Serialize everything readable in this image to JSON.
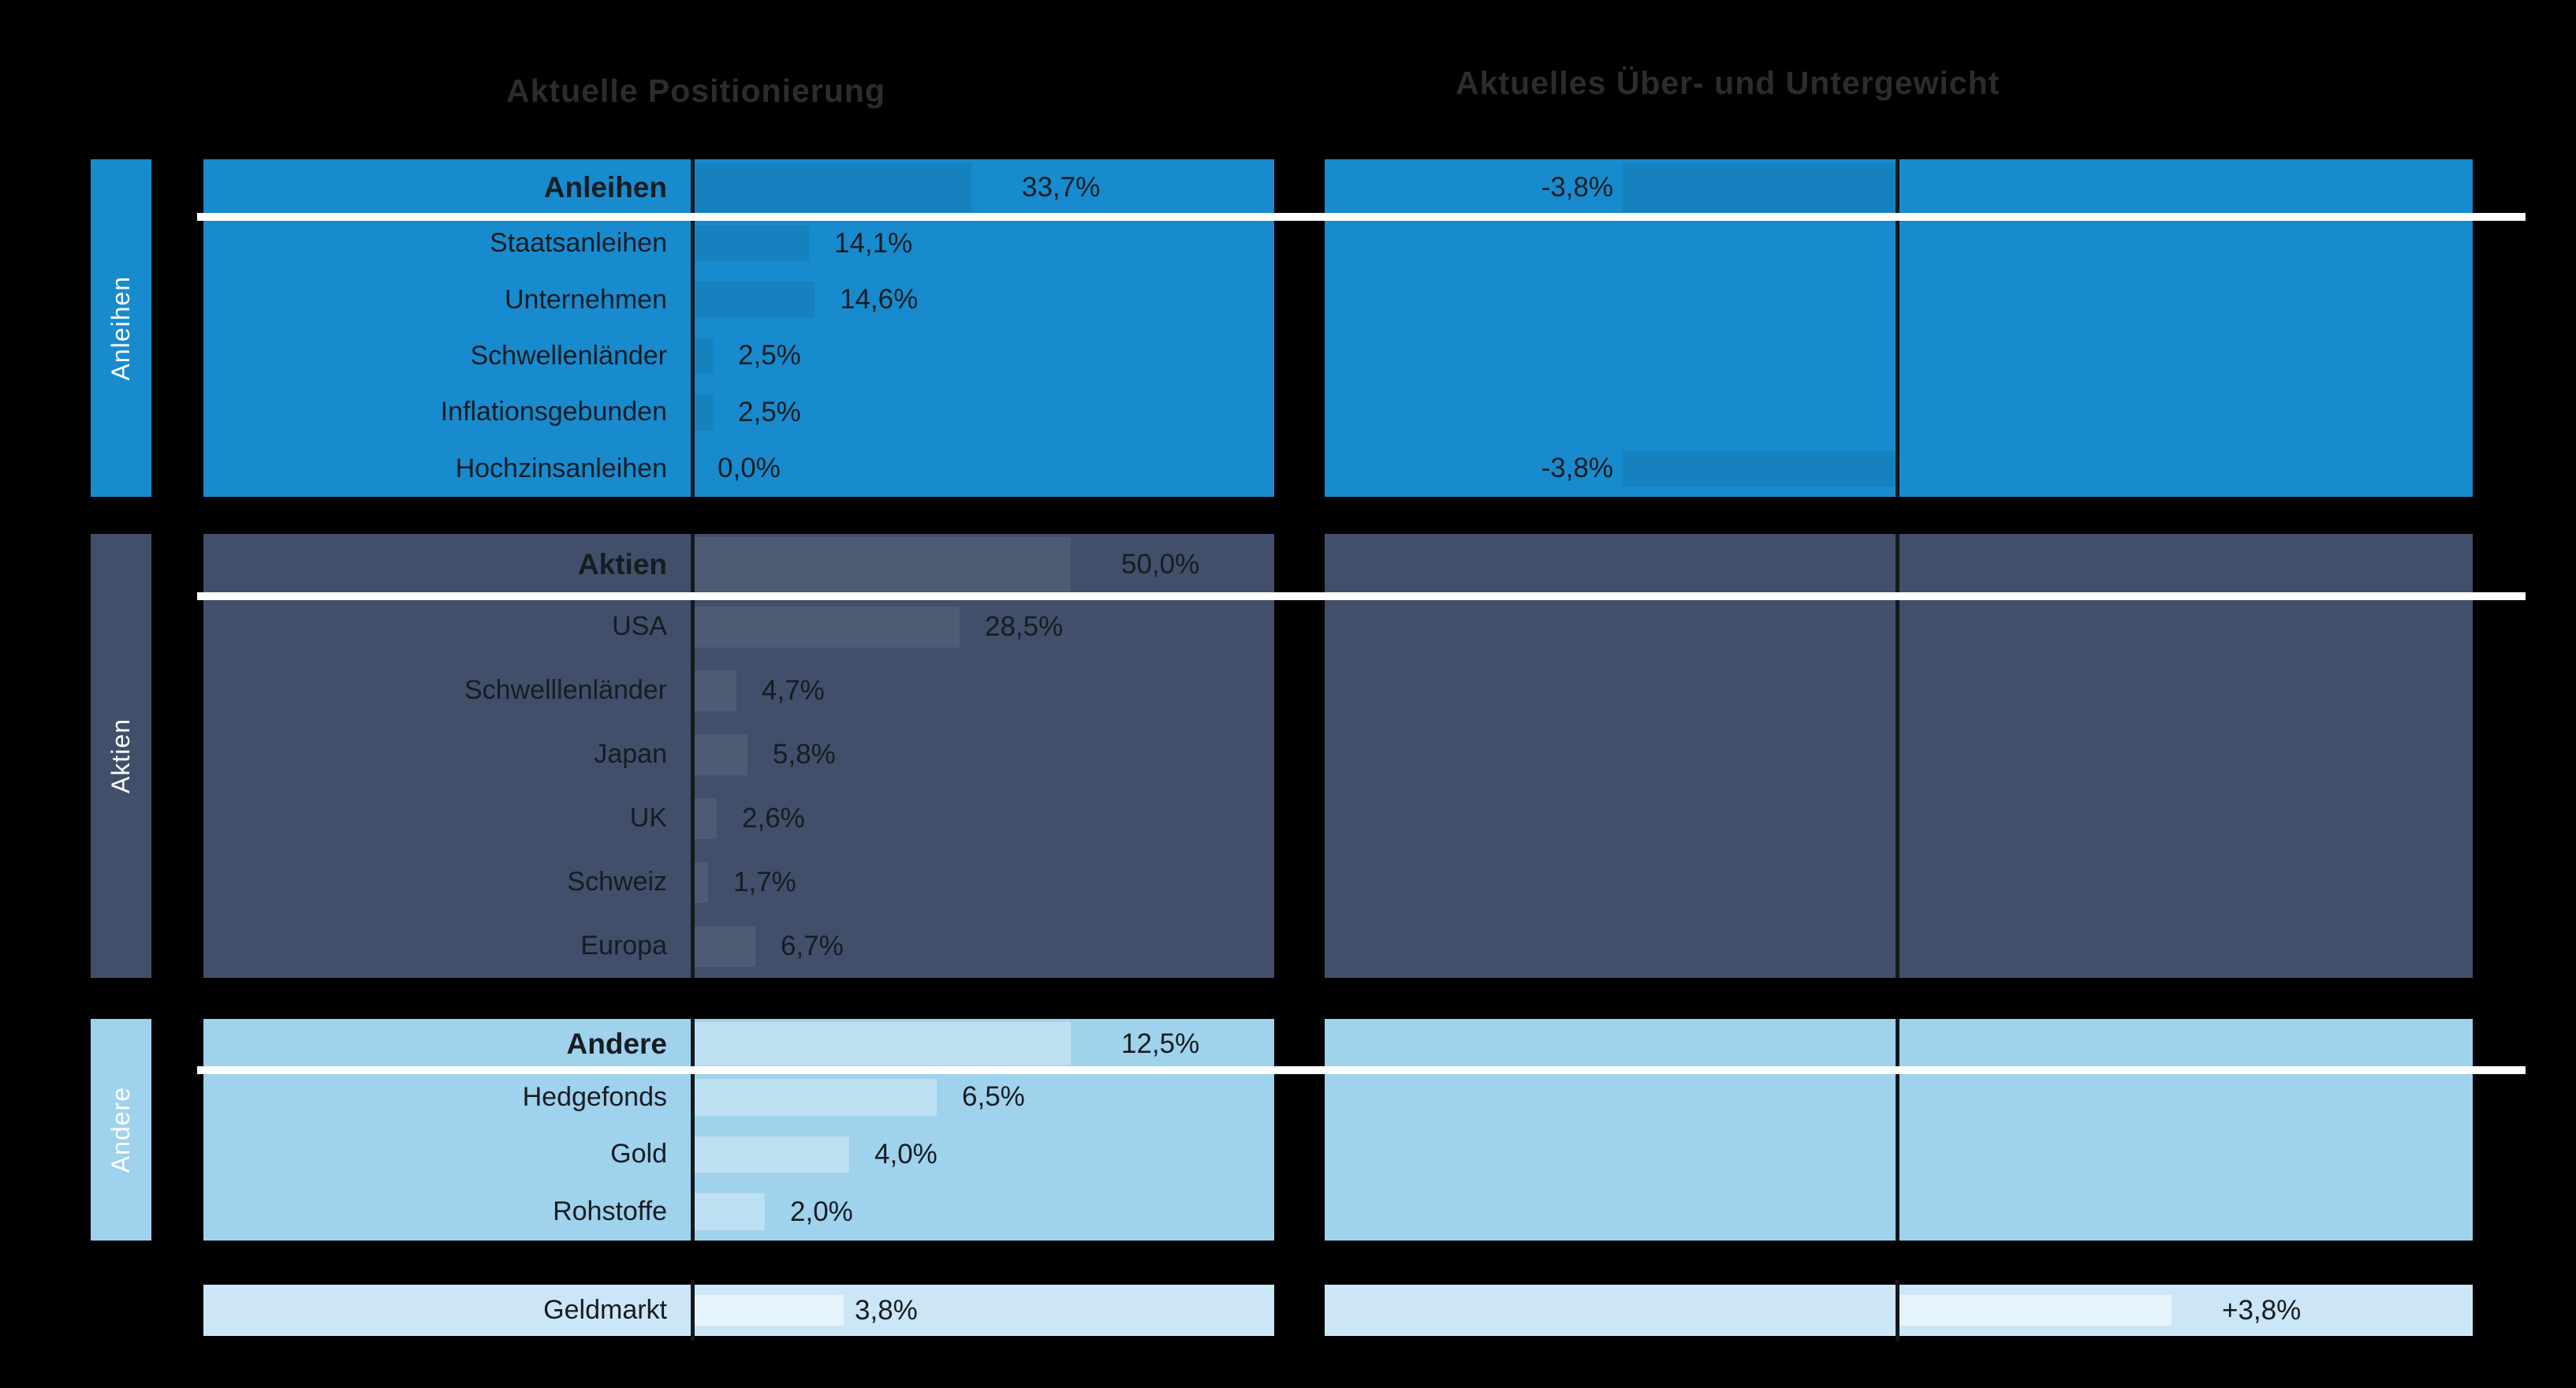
{
  "headings": {
    "left": "Aktuelle Positionierung",
    "right": "Aktuelles Über- und Untergewicht"
  },
  "palette": {
    "background": "#000000",
    "heading_text": "#2b2c2e",
    "label_text": "#171c22",
    "separator_line": "#ffffff",
    "axis_line": "#15181d",
    "sidebar_text": "#ffffff",
    "group_colors": {
      "anleihen": "#178bce",
      "aktien": "#414f6a",
      "andere": "#9fd2ec",
      "geldmarkt": "#cbe6f6"
    }
  },
  "chart_data": {
    "type": "bar",
    "orientation": "horizontal",
    "unit": "%",
    "panels": [
      "Aktuelle Positionierung",
      "Aktuelles Über- und Untergewicht"
    ],
    "groups": [
      {
        "id": "anleihen",
        "sidebar_label": "Anleihen",
        "color": "#178bce",
        "bar_overlay": "rgba(0,0,0,0.07)",
        "rows": [
          {
            "label": "Anleihen",
            "is_header": true,
            "value": 33.7,
            "value_label": "33,7%",
            "bar_frac": 0.48,
            "weight": -3.8,
            "weight_label": "-3,8%",
            "weight_bar_frac": 0.48
          },
          {
            "label": "Staatsanleihen",
            "is_header": false,
            "value": 14.1,
            "value_label": "14,1%",
            "bar_frac": 0.2
          },
          {
            "label": "Unternehmen",
            "is_header": false,
            "value": 14.6,
            "value_label": "14,6%",
            "bar_frac": 0.21
          },
          {
            "label": "Schwellenländer",
            "is_header": false,
            "value": 2.5,
            "value_label": "2,5%",
            "bar_frac": 0.035
          },
          {
            "label": "Inflationsgebunden",
            "is_header": false,
            "value": 2.5,
            "value_label": "2,5%",
            "bar_frac": 0.035
          },
          {
            "label": "Hochzinsanleihen",
            "is_header": false,
            "value": 0.0,
            "value_label": "0,0%",
            "bar_frac": 0,
            "weight": -3.8,
            "weight_label": "-3,8%",
            "weight_bar_frac": 0.48
          }
        ]
      },
      {
        "id": "aktien",
        "sidebar_label": "Aktien",
        "color": "#414f6a",
        "bar_overlay": "rgba(255,255,255,0.07)",
        "rows": [
          {
            "label": "Aktien",
            "is_header": true,
            "value": 50.0,
            "value_label": "50,0%",
            "bar_frac": 0.65
          },
          {
            "label": "USA",
            "is_header": false,
            "value": 28.5,
            "value_label": "28,5%",
            "bar_frac": 0.46
          },
          {
            "label": "Schwelllenländer",
            "is_header": false,
            "value": 4.7,
            "value_label": "4,7%",
            "bar_frac": 0.076
          },
          {
            "label": "Japan",
            "is_header": false,
            "value": 5.8,
            "value_label": "5,8%",
            "bar_frac": 0.095
          },
          {
            "label": "UK",
            "is_header": false,
            "value": 2.6,
            "value_label": "2,6%",
            "bar_frac": 0.042
          },
          {
            "label": "Schweiz",
            "is_header": false,
            "value": 1.7,
            "value_label": "1,7%",
            "bar_frac": 0.027
          },
          {
            "label": "Europa",
            "is_header": false,
            "value": 6.7,
            "value_label": "6,7%",
            "bar_frac": 0.108
          }
        ]
      },
      {
        "id": "andere",
        "sidebar_label": "Andere",
        "color": "#9fd2ec",
        "bar_overlay": "rgba(255,255,255,0.30)",
        "rows": [
          {
            "label": "Andere",
            "is_header": true,
            "value": 12.5,
            "value_label": "12,5%",
            "bar_frac": 0.65
          },
          {
            "label": "Hedgefonds",
            "is_header": false,
            "value": 6.5,
            "value_label": "6,5%",
            "bar_frac": 0.42
          },
          {
            "label": "Gold",
            "is_header": false,
            "value": 4.0,
            "value_label": "4,0%",
            "bar_frac": 0.27
          },
          {
            "label": "Rohstoffe",
            "is_header": false,
            "value": 2.0,
            "value_label": "2,0%",
            "bar_frac": 0.125
          }
        ]
      },
      {
        "id": "geldmarkt",
        "sidebar_label": null,
        "color": "#cbe6f6",
        "bar_overlay": "rgba(255,255,255,0.50)",
        "rows": [
          {
            "label": "Geldmarkt",
            "is_header": false,
            "value": 3.8,
            "value_label": "3,8%",
            "bar_frac": 0.26,
            "weight": 3.8,
            "weight_label": "+3,8%",
            "weight_bar_frac": 0.48
          }
        ]
      }
    ]
  }
}
